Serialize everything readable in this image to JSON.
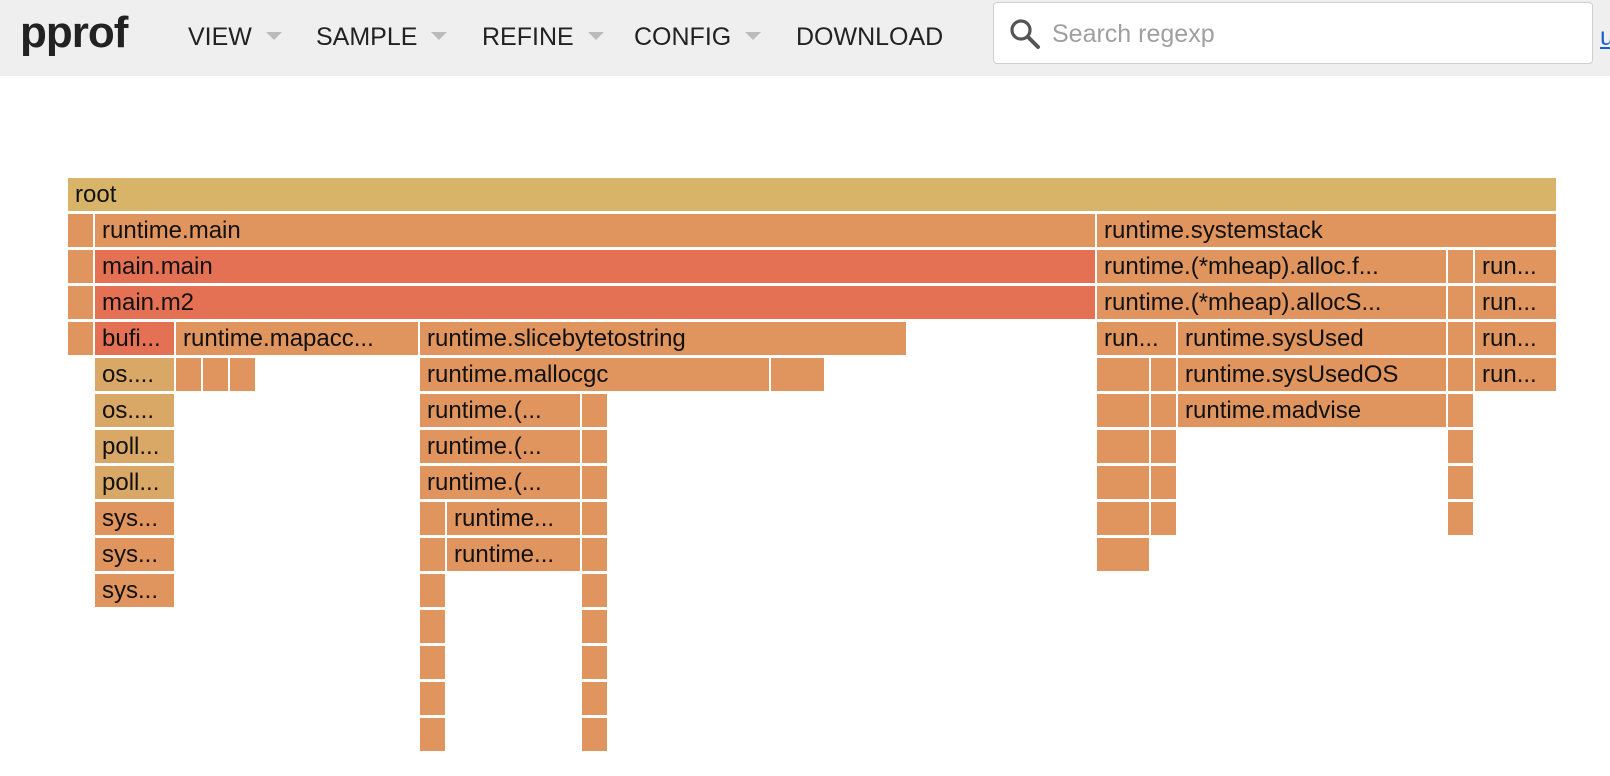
{
  "app": {
    "logo": "pprof"
  },
  "menu": [
    {
      "label": "VIEW",
      "caret": true
    },
    {
      "label": "SAMPLE",
      "caret": true
    },
    {
      "label": "REFINE",
      "caret": true
    },
    {
      "label": "CONFIG",
      "caret": true
    },
    {
      "label": "DOWNLOAD",
      "caret": false
    }
  ],
  "search": {
    "placeholder": "Search regexp",
    "value": "",
    "icon": "search-icon"
  },
  "corner_link": {
    "label": "u"
  },
  "colors": {
    "root": "#d8b468",
    "orange": "#e0945e",
    "red": "#e47153",
    "tan": "#d9a866",
    "topbar": "#efefef"
  },
  "flame": {
    "frames": [
      {
        "label": "root",
        "color": "root"
      },
      {
        "label": "",
        "color": "orange"
      },
      {
        "label": "runtime.main",
        "color": "orange"
      },
      {
        "label": "runtime.systemstack",
        "color": "orange"
      },
      {
        "label": "",
        "color": "orange"
      },
      {
        "label": "main.main",
        "color": "red"
      },
      {
        "label": "runtime.(*mheap).alloc.f...",
        "color": "orange"
      },
      {
        "label": "",
        "color": "orange"
      },
      {
        "label": "run...",
        "color": "orange"
      },
      {
        "label": "",
        "color": "orange"
      },
      {
        "label": "main.m2",
        "color": "red"
      },
      {
        "label": "runtime.(*mheap).allocS...",
        "color": "orange"
      },
      {
        "label": "",
        "color": "orange"
      },
      {
        "label": "run...",
        "color": "orange"
      },
      {
        "label": "",
        "color": "orange"
      },
      {
        "label": "bufi...",
        "color": "red"
      },
      {
        "label": "runtime.mapacc...",
        "color": "orange"
      },
      {
        "label": "runtime.slicebytetostring",
        "color": "orange"
      },
      {
        "label": "run...",
        "color": "orange"
      },
      {
        "label": "runtime.sysUsed",
        "color": "orange"
      },
      {
        "label": "",
        "color": "orange"
      },
      {
        "label": "run...",
        "color": "orange"
      },
      {
        "label": "os....",
        "color": "tan"
      },
      {
        "label": "",
        "color": "orange"
      },
      {
        "label": "",
        "color": "orange"
      },
      {
        "label": "",
        "color": "orange"
      },
      {
        "label": "runtime.mallocgc",
        "color": "orange"
      },
      {
        "label": "",
        "color": "orange"
      },
      {
        "label": "",
        "color": "orange"
      },
      {
        "label": "",
        "color": "orange"
      },
      {
        "label": "runtime.sysUsedOS",
        "color": "orange"
      },
      {
        "label": "",
        "color": "orange"
      },
      {
        "label": "run...",
        "color": "orange"
      },
      {
        "label": "os....",
        "color": "tan"
      },
      {
        "label": "runtime.(...",
        "color": "orange"
      },
      {
        "label": "",
        "color": "orange"
      },
      {
        "label": "",
        "color": "orange"
      },
      {
        "label": "",
        "color": "orange"
      },
      {
        "label": "runtime.madvise",
        "color": "orange"
      },
      {
        "label": "",
        "color": "orange"
      },
      {
        "label": "poll...",
        "color": "tan"
      },
      {
        "label": "runtime.(...",
        "color": "orange"
      },
      {
        "label": "",
        "color": "orange"
      },
      {
        "label": "",
        "color": "orange"
      },
      {
        "label": "",
        "color": "orange"
      },
      {
        "label": "",
        "color": "orange"
      },
      {
        "label": "poll...",
        "color": "tan"
      },
      {
        "label": "runtime.(...",
        "color": "orange"
      },
      {
        "label": "",
        "color": "orange"
      },
      {
        "label": "",
        "color": "orange"
      },
      {
        "label": "",
        "color": "orange"
      },
      {
        "label": "",
        "color": "orange"
      },
      {
        "label": "sys...",
        "color": "orange"
      },
      {
        "label": "",
        "color": "orange"
      },
      {
        "label": "runtime...",
        "color": "orange"
      },
      {
        "label": "",
        "color": "orange"
      },
      {
        "label": "",
        "color": "orange"
      },
      {
        "label": "",
        "color": "orange"
      },
      {
        "label": "",
        "color": "orange"
      },
      {
        "label": "sys...",
        "color": "orange"
      },
      {
        "label": "",
        "color": "orange"
      },
      {
        "label": "runtime...",
        "color": "orange"
      },
      {
        "label": "",
        "color": "orange"
      },
      {
        "label": "",
        "color": "orange"
      },
      {
        "label": "sys...",
        "color": "orange"
      },
      {
        "label": "",
        "color": "orange"
      },
      {
        "label": "",
        "color": "orange"
      },
      {
        "label": "",
        "color": "orange"
      },
      {
        "label": "",
        "color": "orange"
      },
      {
        "label": "",
        "color": "orange"
      },
      {
        "label": "",
        "color": "orange"
      },
      {
        "label": "",
        "color": "orange"
      },
      {
        "label": "",
        "color": "orange"
      },
      {
        "label": "",
        "color": "orange"
      },
      {
        "label": "",
        "color": "orange"
      },
      {
        "label": "",
        "color": "orange"
      },
      {
        "label": "",
        "color": "orange"
      },
      {
        "label": "",
        "color": "orange"
      }
    ]
  }
}
